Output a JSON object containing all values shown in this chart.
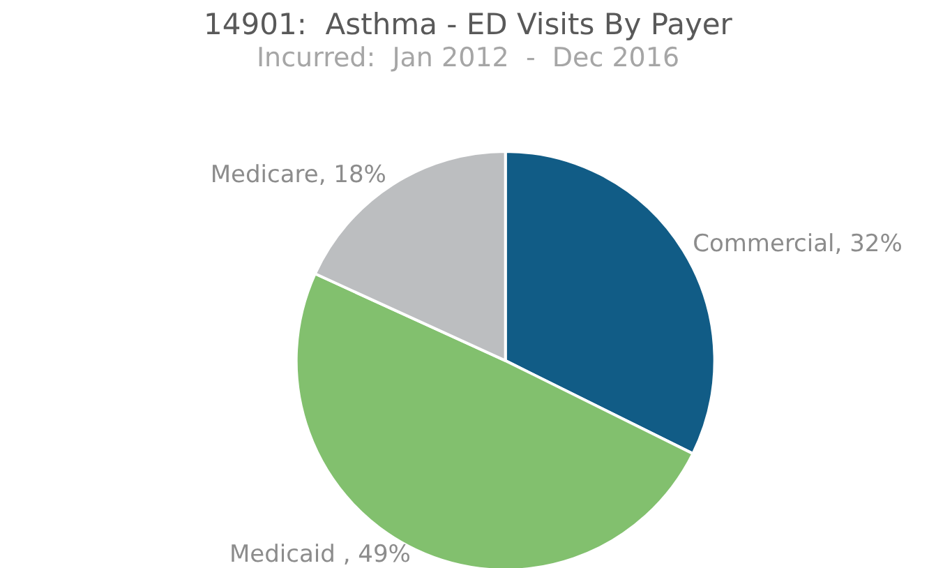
{
  "chart_data": {
    "type": "pie",
    "title": "14901:  Asthma - ED Visits By Payer",
    "subtitle": "Incurred:  Jan 2012  -  Dec 2016",
    "categories": [
      "Commercial",
      "Medicaid ",
      "Medicare"
    ],
    "values": [
      32,
      49,
      18
    ],
    "value_labels": [
      "32%",
      "49%",
      "18%"
    ],
    "colors": [
      "#115c86",
      "#82c06e",
      "#bcbec0"
    ],
    "legend": false
  }
}
